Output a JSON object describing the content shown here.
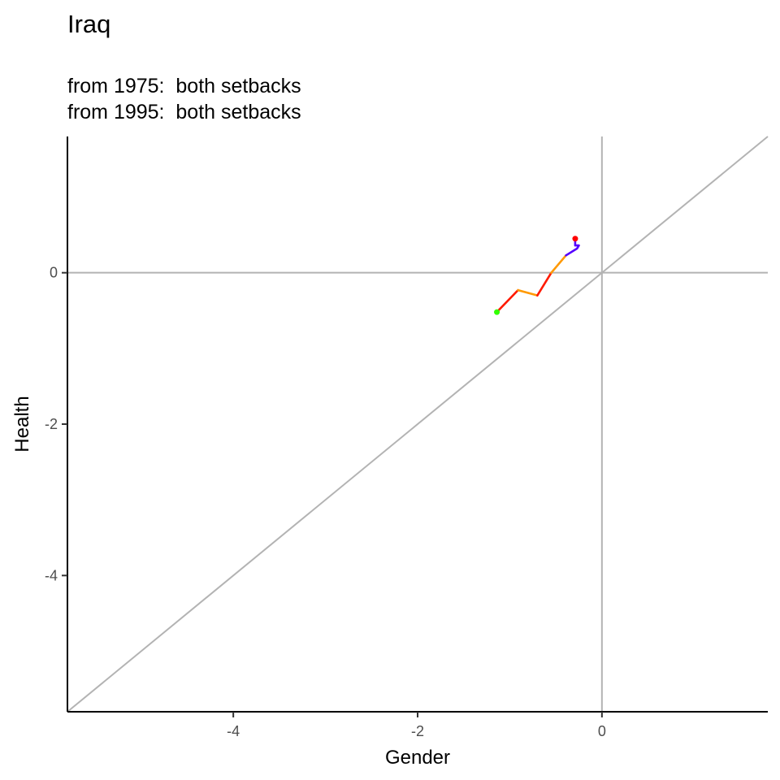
{
  "chart_data": {
    "type": "line",
    "title": "Iraq",
    "subtitle": [
      "from 1975:  both setbacks",
      "from 1995:  both setbacks"
    ],
    "xlabel": "Gender",
    "ylabel": "Health",
    "xlim": [
      -5.8,
      1.8
    ],
    "ylim": [
      -5.8,
      1.8
    ],
    "x_ticks": [
      -4,
      -2,
      0
    ],
    "y_ticks": [
      0,
      -2,
      -4
    ],
    "grid": false,
    "reference_lines": [
      "x = 0",
      "y = 0",
      "y = x"
    ],
    "reference_color": "#b3b3b3",
    "start_marker": {
      "x": -1.14,
      "y": -0.52,
      "color": "#33ff00"
    },
    "end_marker": {
      "x": -0.29,
      "y": 0.45,
      "color": "#ff0000"
    },
    "path_segments": [
      {
        "color": "#ff1a00",
        "points": [
          [
            -1.14,
            -0.52
          ],
          [
            -0.91,
            -0.23
          ]
        ]
      },
      {
        "color": "#ff9900",
        "points": [
          [
            -0.91,
            -0.23
          ],
          [
            -0.7,
            -0.3
          ]
        ]
      },
      {
        "color": "#ff1a00",
        "points": [
          [
            -0.7,
            -0.3
          ],
          [
            -0.55,
            0.0
          ]
        ]
      },
      {
        "color": "#ff9900",
        "points": [
          [
            -0.55,
            0.0
          ],
          [
            -0.39,
            0.23
          ]
        ]
      },
      {
        "color": "#5500ff",
        "points": [
          [
            -0.39,
            0.23
          ],
          [
            -0.27,
            0.32
          ],
          [
            -0.25,
            0.36
          ],
          [
            -0.29,
            0.36
          ],
          [
            -0.29,
            0.45
          ]
        ]
      }
    ]
  }
}
